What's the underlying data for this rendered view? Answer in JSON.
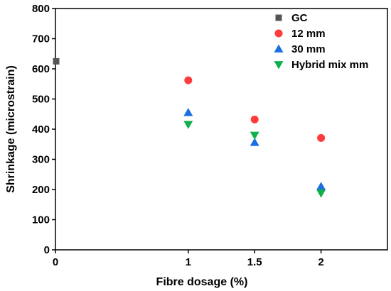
{
  "chart_data": {
    "type": "scatter",
    "title": "",
    "xlabel": "Fibre dosage (%)",
    "ylabel": "Shrinkage (microstrain)",
    "xlim": [
      0,
      2.5
    ],
    "ylim": [
      0,
      800
    ],
    "x_ticks": [
      {
        "value": 0,
        "label": "0"
      },
      {
        "value": 1,
        "label": "1"
      },
      {
        "value": 1.5,
        "label": "1.5"
      },
      {
        "value": 2,
        "label": "2"
      }
    ],
    "y_ticks": [
      0,
      100,
      200,
      300,
      400,
      500,
      600,
      700,
      800
    ],
    "legend_position": "top-right",
    "grid": false,
    "series": [
      {
        "name": "GC",
        "marker": "square",
        "color": "#555555",
        "points": [
          {
            "x": 0,
            "y": 625
          }
        ]
      },
      {
        "name": "12 mm",
        "marker": "circle",
        "color": "#ff3b3b",
        "points": [
          {
            "x": 1,
            "y": 562
          },
          {
            "x": 1.5,
            "y": 432
          },
          {
            "x": 2,
            "y": 371
          }
        ]
      },
      {
        "name": "30 mm",
        "marker": "triangle-up",
        "color": "#1a6fe0",
        "points": [
          {
            "x": 1,
            "y": 455
          },
          {
            "x": 1.5,
            "y": 356
          },
          {
            "x": 2,
            "y": 210
          }
        ]
      },
      {
        "name": "Hybrid mix mm",
        "marker": "triangle-down",
        "color": "#11b04d",
        "points": [
          {
            "x": 1,
            "y": 416
          },
          {
            "x": 1.5,
            "y": 380
          },
          {
            "x": 2,
            "y": 188
          }
        ]
      }
    ]
  }
}
